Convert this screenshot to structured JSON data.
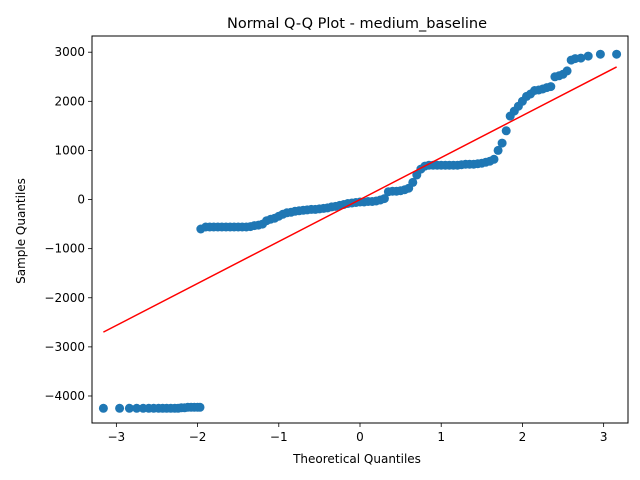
{
  "chart_data": {
    "type": "scatter",
    "title": "Normal Q-Q Plot - medium_baseline",
    "xlabel": "Theoretical Quantiles",
    "ylabel": "Sample Quantiles",
    "xlim": [
      -3.3,
      3.3
    ],
    "ylim": [
      -4550,
      3330
    ],
    "xticks": [
      -3,
      -2,
      -1,
      0,
      1,
      2,
      3
    ],
    "yticks": [
      -4000,
      -3000,
      -2000,
      -1000,
      0,
      1000,
      2000,
      3000
    ],
    "grid": false,
    "colors": {
      "points": "#1f77b4",
      "reference_line": "#ff0000"
    },
    "reference_line": {
      "x": [
        -3.16,
        3.16
      ],
      "y": [
        -2700,
        2700
      ]
    },
    "series": [
      {
        "x": [
          -3.16,
          -2.96,
          -2.84,
          -2.75,
          -2.67,
          -2.6,
          -2.54,
          -2.48,
          -2.43,
          -2.38,
          -2.33,
          -2.28,
          -2.24,
          -2.2,
          -2.16,
          -2.12,
          -2.08,
          -2.04,
          -2.0,
          -1.97,
          -1.96,
          -1.9,
          -1.85,
          -1.8,
          -1.75,
          -1.7,
          -1.65,
          -1.6,
          -1.55,
          -1.5,
          -1.45,
          -1.4,
          -1.35,
          -1.3,
          -1.25,
          -1.2,
          -1.15,
          -1.1,
          -1.05,
          -1.0,
          -0.95,
          -0.9,
          -0.85,
          -0.8,
          -0.75,
          -0.7,
          -0.65,
          -0.6,
          -0.55,
          -0.5,
          -0.45,
          -0.4,
          -0.35,
          -0.3,
          -0.25,
          -0.2,
          -0.15,
          -0.1,
          -0.05,
          0.0,
          0.05,
          0.1,
          0.15,
          0.2,
          0.25,
          0.3,
          0.35,
          0.4,
          0.45,
          0.5,
          0.55,
          0.6,
          0.65,
          0.7,
          0.75,
          0.8,
          0.85,
          0.9,
          0.95,
          1.0,
          1.05,
          1.1,
          1.15,
          1.2,
          1.25,
          1.3,
          1.35,
          1.4,
          1.45,
          1.5,
          1.55,
          1.6,
          1.65,
          1.7,
          1.75,
          1.8,
          1.85,
          1.9,
          1.95,
          2.0,
          2.05,
          2.1,
          2.15,
          2.2,
          2.25,
          2.3,
          2.35,
          2.4,
          2.45,
          2.5,
          2.55,
          2.6,
          2.65,
          2.72,
          2.81,
          2.96,
          3.16
        ],
        "y": [
          -4250,
          -4250,
          -4250,
          -4250,
          -4250,
          -4250,
          -4250,
          -4250,
          -4250,
          -4250,
          -4250,
          -4250,
          -4250,
          -4240,
          -4240,
          -4230,
          -4230,
          -4230,
          -4230,
          -4230,
          -600,
          -560,
          -560,
          -560,
          -560,
          -560,
          -560,
          -560,
          -560,
          -560,
          -560,
          -560,
          -550,
          -530,
          -520,
          -500,
          -430,
          -400,
          -380,
          -340,
          -300,
          -270,
          -260,
          -240,
          -230,
          -220,
          -210,
          -200,
          -200,
          -190,
          -180,
          -170,
          -150,
          -140,
          -120,
          -100,
          -80,
          -70,
          -60,
          -50,
          -50,
          -40,
          -40,
          -30,
          -10,
          20,
          160,
          170,
          170,
          180,
          200,
          230,
          350,
          500,
          620,
          680,
          700,
          700,
          700,
          700,
          700,
          700,
          700,
          700,
          710,
          720,
          720,
          720,
          730,
          740,
          760,
          780,
          820,
          1000,
          1150,
          1400,
          1700,
          1800,
          1900,
          2000,
          2100,
          2150,
          2220,
          2230,
          2250,
          2280,
          2300,
          2500,
          2520,
          2550,
          2620,
          2840,
          2870,
          2880,
          2920,
          2960,
          2960
        ]
      }
    ]
  }
}
